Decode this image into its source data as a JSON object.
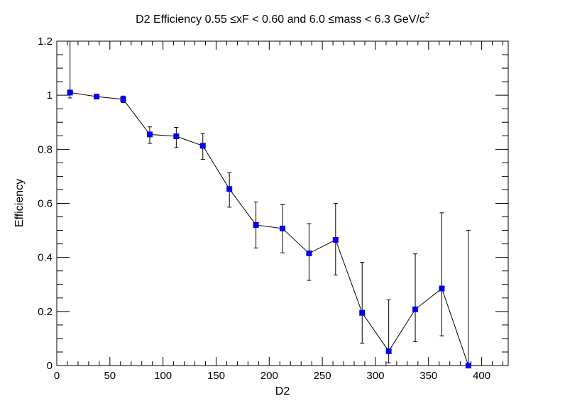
{
  "chart_data": {
    "type": "scatter",
    "title": "D2 Efficiency 0.55  ≤xF < 0.60 and 6.0  ≤mass < 6.3 GeV/c",
    "title_superscript": "2",
    "xlabel": "D2",
    "ylabel": "Efficiency",
    "xlim": [
      0,
      425
    ],
    "ylim": [
      0,
      1.2
    ],
    "x_ticks": [
      0,
      50,
      100,
      150,
      200,
      250,
      300,
      350,
      400
    ],
    "x_tick_labels": [
      "0",
      "50",
      "100",
      "150",
      "200",
      "250",
      "300",
      "350",
      "400"
    ],
    "y_ticks": [
      0,
      0.2,
      0.4,
      0.6,
      0.8,
      1.0,
      1.2
    ],
    "y_tick_labels": [
      "0",
      "0.2",
      "0.4",
      "0.6",
      "0.8",
      "1",
      "1.2"
    ],
    "grid": false,
    "legend": "none",
    "series": [
      {
        "marker": "square",
        "marker_color": "#0000ee",
        "line_color": "#000000",
        "connect_points": true,
        "x": [
          12.5,
          37.5,
          62.5,
          87.5,
          112.5,
          137.5,
          162.5,
          187.5,
          212.5,
          237.5,
          262.5,
          287.5,
          312.5,
          337.5,
          362.5,
          387.5
        ],
        "y": [
          1.01,
          0.995,
          0.985,
          0.855,
          0.848,
          0.813,
          0.653,
          0.52,
          0.507,
          0.415,
          0.465,
          0.195,
          0.053,
          0.208,
          0.285,
          0.0
        ],
        "err_low": [
          0.02,
          0.008,
          0.012,
          0.033,
          0.042,
          0.05,
          0.067,
          0.085,
          0.09,
          0.1,
          0.13,
          0.112,
          0.043,
          0.12,
          0.175,
          0.0
        ],
        "err_high": [
          0.35,
          0.008,
          0.012,
          0.028,
          0.033,
          0.045,
          0.06,
          0.085,
          0.088,
          0.11,
          0.135,
          0.187,
          0.19,
          0.205,
          0.28,
          0.5
        ]
      }
    ]
  }
}
